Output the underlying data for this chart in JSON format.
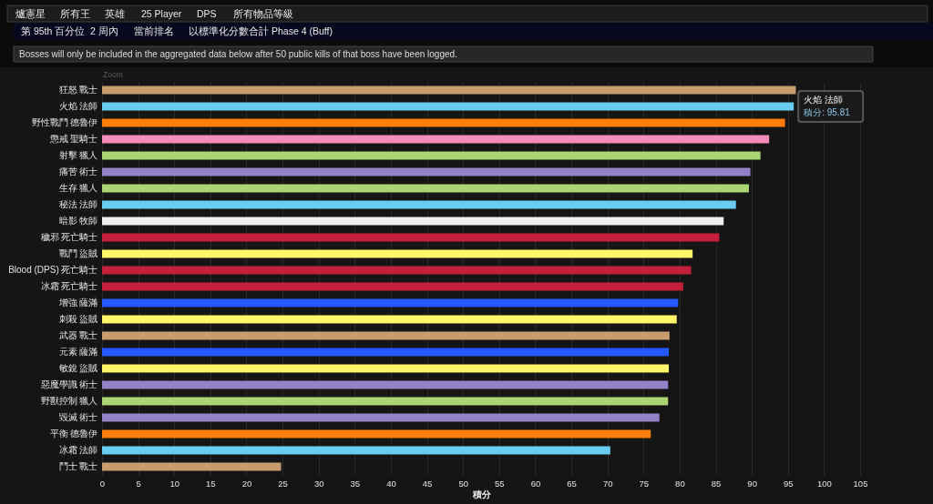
{
  "chart_data": {
    "type": "bar",
    "orientation": "horizontal",
    "xlabel": "積分",
    "categories": [
      "狂怒 戰士",
      "火焰 法師",
      "野性戰鬥 德魯伊",
      "懲戒 聖騎士",
      "射擊 獵人",
      "痛苦 術士",
      "生存 獵人",
      "秘法 法師",
      "暗影 牧師",
      "穢邪 死亡騎士",
      "戰鬥 盜賊",
      "Blood (DPS) 死亡騎士",
      "冰霜 死亡騎士",
      "增強 薩滿",
      "刺殺 盜賊",
      "武器 戰士",
      "元素 薩滿",
      "敏銳 盜賊",
      "惡魔學識 術士",
      "野獸控制 獵人",
      "毀滅 術士",
      "平衡 德魯伊",
      "冰霜 法師",
      "鬥士 戰士"
    ],
    "values": [
      96.1,
      95.81,
      94.6,
      92.4,
      91.2,
      89.8,
      89.6,
      87.8,
      86.1,
      85.5,
      81.8,
      81.6,
      80.5,
      79.8,
      79.6,
      78.6,
      78.5,
      78.5,
      78.4,
      78.4,
      77.2,
      76.0,
      70.4,
      24.8
    ],
    "colors": [
      "#c79c6e",
      "#69ccf0",
      "#ff7d0a",
      "#f58cba",
      "#abd473",
      "#9482c9",
      "#abd473",
      "#69ccf0",
      "#f0f0f0",
      "#c41f3b",
      "#fff569",
      "#c41f3b",
      "#c41f3b",
      "#2459ff",
      "#fff569",
      "#c79c6e",
      "#2459ff",
      "#fff569",
      "#9482c9",
      "#abd473",
      "#9482c9",
      "#ff7d0a",
      "#69ccf0",
      "#c79c6e"
    ],
    "xlim": [
      0,
      105
    ],
    "xticks": [
      0,
      5,
      10,
      15,
      20,
      25,
      30,
      35,
      40,
      45,
      50,
      55,
      60,
      65,
      70,
      75,
      80,
      85,
      90,
      95,
      100,
      105
    ],
    "grid": "x",
    "annotations": [
      "爐憲星",
      "所有王",
      "英雄",
      "25 Player",
      "DPS",
      "所有物品等級",
      "第 95th 百分位",
      "2 周內",
      "當前排名",
      "以標準化分數合計",
      "Phase 4 (Buff)",
      "Bosses will only be included in the aggregated data below after 50 public kills of that boss have been logged.",
      "Zoom",
      {
        "text": "火焰 法師",
        "x": 95.81,
        "y": "火焰 法師"
      },
      {
        "text": "積分: 95.81",
        "x": 95.81,
        "y": "火焰 法師"
      }
    ]
  }
}
